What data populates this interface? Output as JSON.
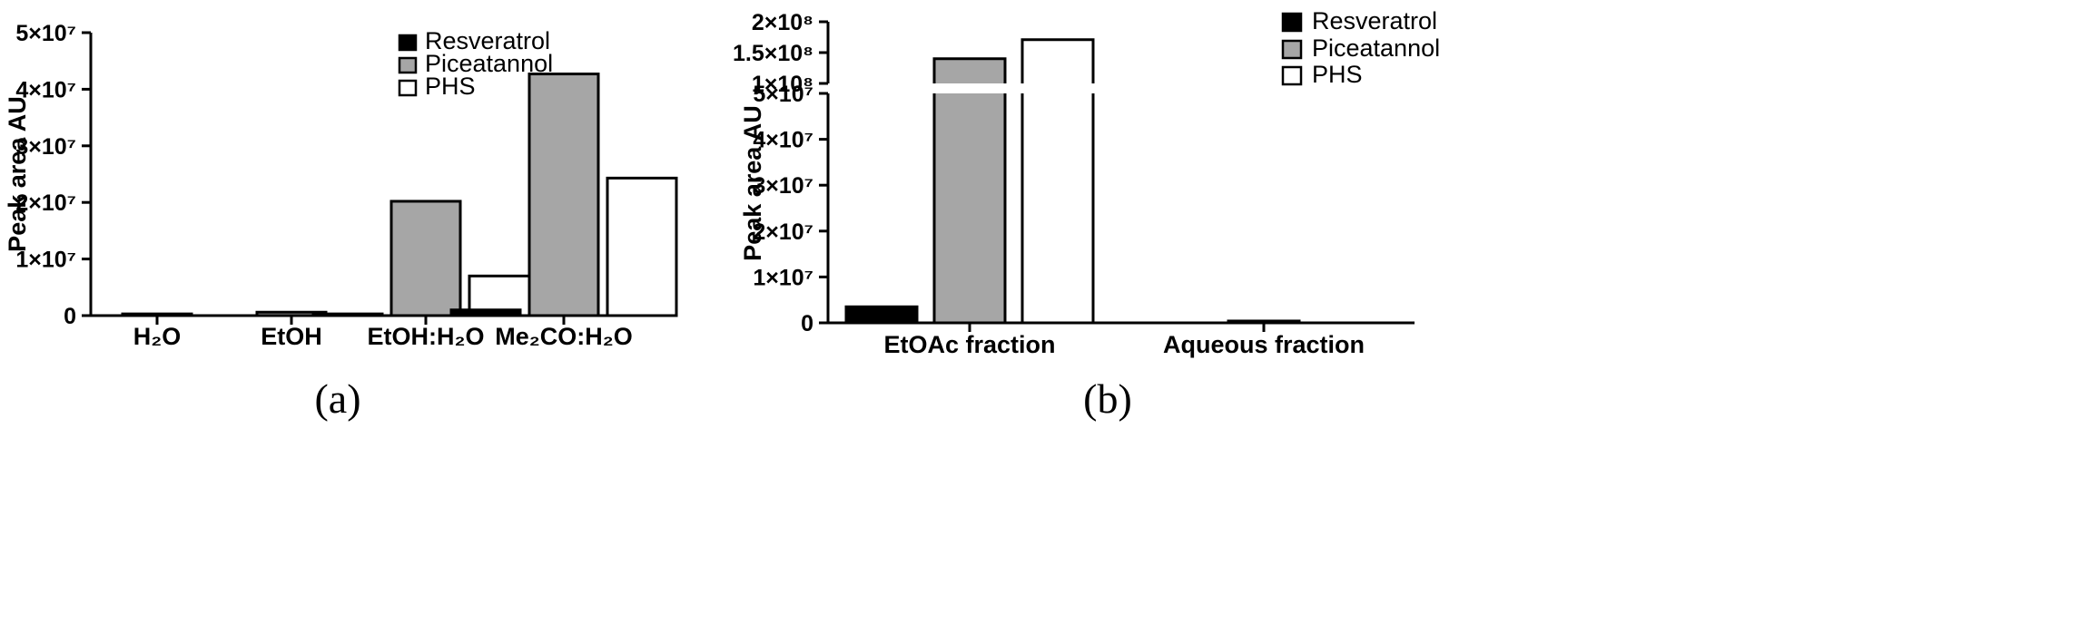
{
  "colors": {
    "Resveratrol": "#000000",
    "Piceatannol": "#a6a6a6",
    "PHS": "#ffffff"
  },
  "chart_data": [
    {
      "type": "bar",
      "panel_label": "(a)",
      "ylabel": "Peak area AU",
      "categories": [
        "H₂O",
        "EtOH",
        "EtOH:H₂O",
        "Me₂CO:H₂O"
      ],
      "series": [
        {
          "name": "Resveratrol",
          "values": [
            0,
            0,
            300000,
            1000000
          ]
        },
        {
          "name": "Piceatannol",
          "values": [
            300000,
            600000,
            20200000,
            42700000
          ]
        },
        {
          "name": "PHS",
          "values": [
            0,
            0,
            7000000,
            24300000
          ]
        }
      ],
      "ylim": [
        0,
        50000000
      ],
      "yticks": [
        0,
        10000000,
        20000000,
        30000000,
        40000000,
        50000000
      ],
      "ytick_labels": [
        "0",
        "1×10⁷",
        "2×10⁷",
        "3×10⁷",
        "4×10⁷",
        "5×10⁷"
      ],
      "legend": [
        "Resveratrol",
        "Piceatannol",
        "PHS"
      ],
      "legend_position": "top-right",
      "grid": false
    },
    {
      "type": "bar",
      "panel_label": "(b)",
      "ylabel": "Peak area AU",
      "categories": [
        "EtOAc fraction",
        "Aqueous fraction"
      ],
      "series": [
        {
          "name": "Resveratrol",
          "values": [
            3500000,
            0
          ]
        },
        {
          "name": "Piceatannol",
          "values": [
            140000000,
            400000
          ]
        },
        {
          "name": "PHS",
          "values": [
            171000000,
            0
          ]
        }
      ],
      "y_axis_break": {
        "lower_range": [
          0,
          50000000
        ],
        "upper_range": [
          100000000,
          200000000
        ]
      },
      "yticks": [
        0,
        10000000,
        20000000,
        30000000,
        40000000,
        50000000,
        100000000,
        150000000,
        200000000
      ],
      "ytick_labels": [
        "0",
        "1×10⁷",
        "2×10⁷",
        "3×10⁷",
        "4×10⁷",
        "5×10⁷",
        "1×10⁸",
        "1.5×10⁸",
        "2×10⁸"
      ],
      "legend": [
        "Resveratrol",
        "Piceatannol",
        "PHS"
      ],
      "legend_position": "top-right",
      "grid": false
    }
  ]
}
